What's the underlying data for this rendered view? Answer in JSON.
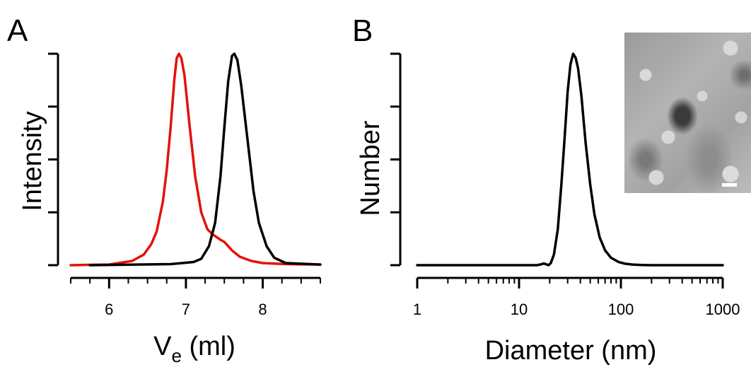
{
  "panels": {
    "a": {
      "letter": "A"
    },
    "b": {
      "letter": "B"
    }
  },
  "chart_data": [
    {
      "type": "line",
      "panel": "A",
      "xlabel_main": "V",
      "xlabel_sub": "e",
      "xlabel_unit": " (ml)",
      "ylabel": "Intensity",
      "xlim": [
        5.5,
        8.75
      ],
      "ylim": [
        0,
        1
      ],
      "x_ticks": [
        6,
        7,
        8
      ],
      "x_tick_labels": [
        "6",
        "7",
        "8"
      ],
      "x_minor_step": 0.25,
      "y_ticks": [
        0,
        0.25,
        0.5,
        0.75,
        1.0
      ],
      "series": [
        {
          "color": "#e3120b",
          "points": [
            [
              5.5,
              0.0
            ],
            [
              6.0,
              0.003
            ],
            [
              6.3,
              0.02
            ],
            [
              6.45,
              0.05
            ],
            [
              6.55,
              0.1
            ],
            [
              6.62,
              0.16
            ],
            [
              6.7,
              0.3
            ],
            [
              6.75,
              0.45
            ],
            [
              6.8,
              0.65
            ],
            [
              6.85,
              0.88
            ],
            [
              6.88,
              0.98
            ],
            [
              6.91,
              1.0
            ],
            [
              6.94,
              0.98
            ],
            [
              6.98,
              0.9
            ],
            [
              7.05,
              0.65
            ],
            [
              7.12,
              0.42
            ],
            [
              7.2,
              0.25
            ],
            [
              7.28,
              0.17
            ],
            [
              7.35,
              0.145
            ],
            [
              7.45,
              0.12
            ],
            [
              7.5,
              0.11
            ],
            [
              7.6,
              0.07
            ],
            [
              7.7,
              0.04
            ],
            [
              7.85,
              0.02
            ],
            [
              8.0,
              0.01
            ],
            [
              8.3,
              0.005
            ],
            [
              8.75,
              0.003
            ]
          ]
        },
        {
          "color": "#000000",
          "points": [
            [
              5.75,
              0.0
            ],
            [
              6.2,
              0.002
            ],
            [
              6.8,
              0.005
            ],
            [
              7.1,
              0.015
            ],
            [
              7.2,
              0.03
            ],
            [
              7.3,
              0.09
            ],
            [
              7.38,
              0.2
            ],
            [
              7.45,
              0.42
            ],
            [
              7.5,
              0.65
            ],
            [
              7.55,
              0.87
            ],
            [
              7.6,
              0.99
            ],
            [
              7.63,
              1.0
            ],
            [
              7.67,
              0.97
            ],
            [
              7.72,
              0.85
            ],
            [
              7.8,
              0.6
            ],
            [
              7.88,
              0.35
            ],
            [
              7.95,
              0.2
            ],
            [
              8.05,
              0.09
            ],
            [
              8.15,
              0.035
            ],
            [
              8.3,
              0.01
            ],
            [
              8.75,
              0.003
            ]
          ]
        }
      ]
    },
    {
      "type": "line",
      "panel": "B",
      "xlabel": "Diameter (nm)",
      "ylabel": "Number",
      "x_scale": "log",
      "xlim": [
        1,
        1000
      ],
      "ylim": [
        0,
        1
      ],
      "x_ticks": [
        1,
        10,
        100,
        1000
      ],
      "x_tick_labels": [
        "1",
        "10",
        "100",
        "1000"
      ],
      "y_ticks": [
        0,
        0.25,
        0.5,
        0.75,
        1.0
      ],
      "series": [
        {
          "color": "#000000",
          "points": [
            [
              1,
              0.0
            ],
            [
              15,
              0.0
            ],
            [
              16.5,
              0.004
            ],
            [
              17.5,
              0.008
            ],
            [
              18.5,
              0.004
            ],
            [
              19.5,
              0.0
            ],
            [
              20.5,
              0.01
            ],
            [
              22,
              0.05
            ],
            [
              24,
              0.17
            ],
            [
              26,
              0.38
            ],
            [
              28,
              0.6
            ],
            [
              30,
              0.82
            ],
            [
              32,
              0.95
            ],
            [
              34,
              1.0
            ],
            [
              36,
              0.98
            ],
            [
              38,
              0.93
            ],
            [
              41,
              0.8
            ],
            [
              45,
              0.58
            ],
            [
              50,
              0.38
            ],
            [
              55,
              0.24
            ],
            [
              62,
              0.13
            ],
            [
              70,
              0.07
            ],
            [
              80,
              0.035
            ],
            [
              95,
              0.015
            ],
            [
              110,
              0.007
            ],
            [
              130,
              0.003
            ],
            [
              160,
              0.001
            ],
            [
              200,
              0.0
            ],
            [
              1000,
              0.0
            ]
          ]
        }
      ]
    }
  ],
  "inset": {
    "description_name": "tem-micrograph"
  }
}
